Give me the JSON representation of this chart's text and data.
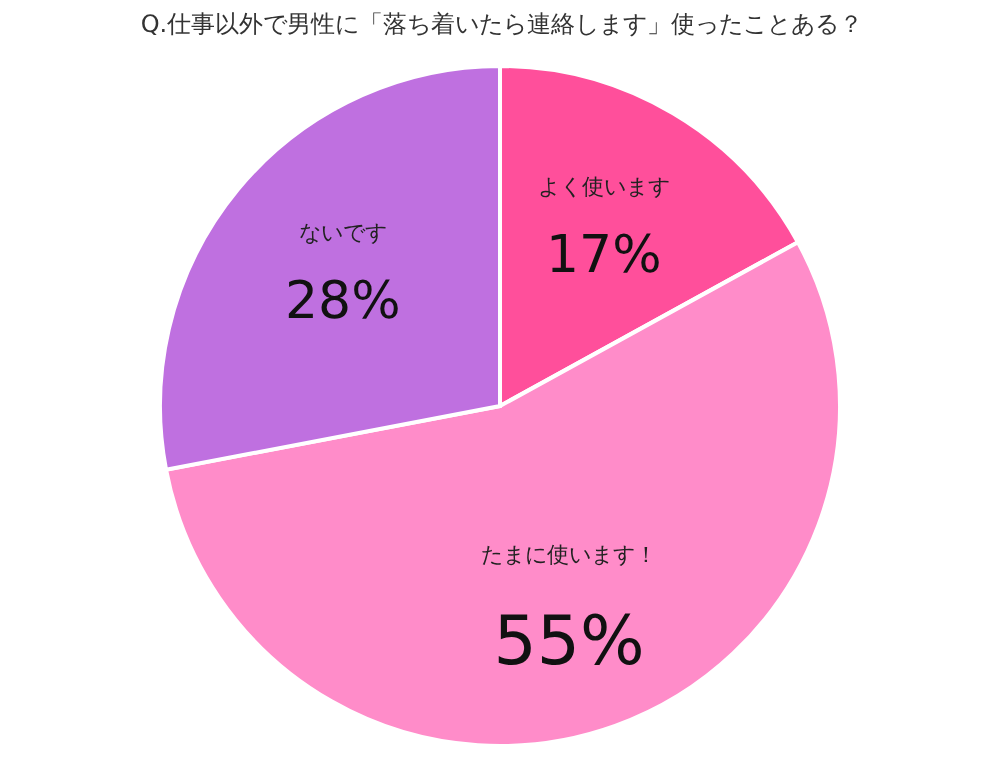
{
  "chart_data": {
    "type": "pie",
    "title": "Q.仕事以外で男性に「落ち着いたら連絡します」使ったことある？",
    "categories": [
      "よく使います",
      "たまに使います！",
      "ないです"
    ],
    "values": [
      17,
      55,
      28
    ],
    "value_labels": [
      "17%",
      "55%",
      "28%"
    ],
    "colors": [
      "#ff4f9b",
      "#ff8cc9",
      "#bf70e0"
    ],
    "legend": false
  }
}
